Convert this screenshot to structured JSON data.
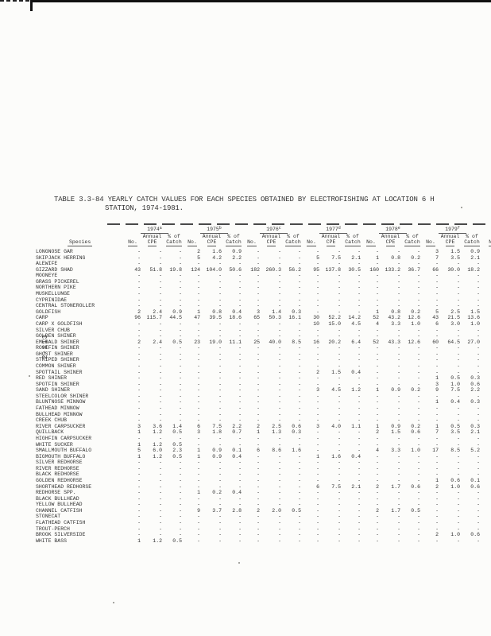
{
  "page": {
    "number_vertical": "2-113"
  },
  "title": {
    "line1": "TABLE 3.3-84  YEARLY CATCH VALUES FOR EACH SPECIES OBTAINED BY ELECTROFISHING AT LOCATION 6 H",
    "line2": "STATION, 1974-1981."
  },
  "table": {
    "species_header": "Species",
    "dash_fill": "-",
    "trailing_col": "No",
    "subcols": {
      "no": "No.",
      "annual": "Annual",
      "cpe": "CPE",
      "pct": "% of",
      "catch": "Catch"
    },
    "year_groups": [
      {
        "year": "1974",
        "sup": "a"
      },
      {
        "year": "1975",
        "sup": "b"
      },
      {
        "year": "1976",
        "sup": "c"
      },
      {
        "year": "1977",
        "sup": "d"
      },
      {
        "year": "1978",
        "sup": "e"
      },
      {
        "year": "1979",
        "sup": "f"
      }
    ],
    "rows": [
      {
        "s": "LONGNOSE GAR",
        "v": [
          "-",
          "-",
          "-",
          "2",
          "1.6",
          "0.9",
          "-",
          "-",
          "-",
          "-",
          "-",
          "-",
          "-",
          "-",
          "-",
          "3",
          "1.5",
          "0.9"
        ]
      },
      {
        "s": "SKIPJACK HERRING",
        "v": [
          "-",
          "-",
          "-",
          "5",
          "4.2",
          "2.2",
          "-",
          "-",
          "-",
          "5",
          "7.5",
          "2.1",
          "1",
          "0.8",
          "0.2",
          "7",
          "3.5",
          "2.1"
        ]
      },
      {
        "s": "ALEWIFE"
      },
      {
        "s": "GIZZARD SHAD",
        "v": [
          "43",
          "51.8",
          "19.8",
          "124",
          "104.0",
          "50.6",
          "182",
          "260.3",
          "56.2",
          "95",
          "137.8",
          "30.5",
          "160",
          "133.2",
          "36.7",
          "66",
          "30.0",
          "18.2"
        ]
      },
      {
        "s": "MOONEYE"
      },
      {
        "s": "GRASS PICKEREL"
      },
      {
        "s": "NORTHERN PIKE"
      },
      {
        "s": "MUSKELLUNGE"
      },
      {
        "s": "CYPRINIDAE"
      },
      {
        "s": "CENTRAL STONEROLLER"
      },
      {
        "s": "GOLDFISH",
        "v": [
          "2",
          "2.4",
          "0.9",
          "1",
          "0.8",
          "0.4",
          "3",
          "1.4",
          "0.3",
          "-",
          "-",
          "-",
          "1",
          "0.8",
          "0.2",
          "5",
          "2.5",
          "1.5"
        ]
      },
      {
        "s": "CARP",
        "v": [
          "96",
          "115.7",
          "44.5",
          "47",
          "39.5",
          "18.6",
          "65",
          "50.3",
          "16.1",
          "30",
          "52.2",
          "14.2",
          "52",
          "43.2",
          "12.6",
          "43",
          "21.5",
          "13.6"
        ]
      },
      {
        "s": "CARP X GOLDFISH",
        "v": [
          "-",
          "-",
          "-",
          "-",
          "-",
          "-",
          "-",
          "-",
          "-",
          "10",
          "15.0",
          "4.5",
          "4",
          "3.3",
          "1.0",
          "6",
          "3.0",
          "1.0"
        ]
      },
      {
        "s": "SILVER CHUB"
      },
      {
        "s": "GOLDEN SHINER"
      },
      {
        "s": "EMERALD SHINER",
        "v": [
          "2",
          "2.4",
          "0.5",
          "23",
          "19.0",
          "11.1",
          "25",
          "40.0",
          "8.5",
          "16",
          "20.2",
          "6.4",
          "52",
          "43.3",
          "12.6",
          "60",
          "64.5",
          "27.0"
        ]
      },
      {
        "s": "ROSEFIN SHINER"
      },
      {
        "s": "GHOST SHINER"
      },
      {
        "s": "STRIPED SHINER"
      },
      {
        "s": "COMMON SHINER"
      },
      {
        "s": "SPOTTAIL SHINER",
        "v": [
          "-",
          "-",
          "-",
          "-",
          "-",
          "-",
          "-",
          "-",
          "-",
          "2",
          "1.5",
          "0.4",
          "-",
          "-",
          "-",
          "-",
          "-",
          "-"
        ]
      },
      {
        "s": "RED SHINER",
        "v": [
          "-",
          "-",
          "-",
          "-",
          "-",
          "-",
          "-",
          "-",
          "-",
          "-",
          "-",
          "-",
          "-",
          "-",
          "-",
          "1",
          "0.5",
          "0.3"
        ]
      },
      {
        "s": "SPOTFIN SHINER",
        "v": [
          "-",
          "-",
          "-",
          "-",
          "-",
          "-",
          "-",
          "-",
          "-",
          "-",
          "-",
          "-",
          "-",
          "-",
          "-",
          "3",
          "1.0",
          "0.6"
        ]
      },
      {
        "s": "SAND SHINER",
        "v": [
          "-",
          "-",
          "-",
          "-",
          "-",
          "-",
          "-",
          "-",
          "-",
          "3",
          "4.5",
          "1.2",
          "1",
          "0.9",
          "0.2",
          "9",
          "7.5",
          "2.2"
        ]
      },
      {
        "s": "STEELCOLOR SHINER"
      },
      {
        "s": "BLUNTNOSE MINNOW",
        "v": [
          "-",
          "-",
          "-",
          "-",
          "-",
          "-",
          "-",
          "-",
          "-",
          "-",
          "-",
          "-",
          "-",
          "-",
          "-",
          "1",
          "0.4",
          "0.3"
        ]
      },
      {
        "s": "FATHEAD MINNOW"
      },
      {
        "s": "BULLHEAD MINNOW"
      },
      {
        "s": "CREEK CHUB"
      },
      {
        "s": "RIVER CARPSUCKER",
        "v": [
          "3",
          "3.6",
          "1.4",
          "6",
          "7.5",
          "2.2",
          "2",
          "2.5",
          "0.6",
          "3",
          "4.0",
          "1.1",
          "1",
          "0.9",
          "0.2",
          "1",
          "0.5",
          "0.3"
        ]
      },
      {
        "s": "QUILLBACK",
        "v": [
          "1",
          "1.2",
          "0.5",
          "3",
          "1.8",
          "0.7",
          "1",
          "1.3",
          "0.3",
          "-",
          "-",
          "-",
          "2",
          "1.5",
          "0.6",
          "7",
          "3.5",
          "2.1"
        ]
      },
      {
        "s": "HIGHFIN CARPSUCKER"
      },
      {
        "s": "WHITE SUCKER",
        "v": [
          "1",
          "1.2",
          "0.5",
          "-",
          "-",
          "-",
          "-",
          "-",
          "-",
          "-",
          "-",
          "-",
          "-",
          "-",
          "-",
          "-",
          "-",
          "-"
        ]
      },
      {
        "s": "SMALLMOUTH BUFFALO",
        "v": [
          "5",
          "6.0",
          "2.3",
          "1",
          "0.9",
          "0.1",
          "6",
          "8.6",
          "1.6",
          "-",
          "-",
          "-",
          "4",
          "3.3",
          "1.0",
          "17",
          "8.5",
          "5.2"
        ]
      },
      {
        "s": "BIGMOUTH BUFFALO",
        "v": [
          "1",
          "1.2",
          "0.5",
          "1",
          "0.9",
          "0.4",
          "-",
          "-",
          "-",
          "1",
          "1.6",
          "0.4",
          "-",
          "-",
          "-",
          "-",
          "-",
          "-"
        ]
      },
      {
        "s": "SILVER REDHORSE"
      },
      {
        "s": "RIVER REDHORSE"
      },
      {
        "s": "BLACK REDHORSE"
      },
      {
        "s": "GOLDEN REDHORSE",
        "v": [
          "-",
          "-",
          "-",
          "-",
          "-",
          "-",
          "-",
          "-",
          "-",
          "-",
          "-",
          "-",
          "-",
          "-",
          "-",
          "1",
          "0.6",
          "0.1"
        ]
      },
      {
        "s": "SHORTHEAD REDHORSE",
        "v": [
          "-",
          "-",
          "-",
          "-",
          "-",
          "-",
          "-",
          "-",
          "-",
          "6",
          "7.5",
          "2.1",
          "2",
          "1.7",
          "0.6",
          "2",
          "1.0",
          "0.6"
        ]
      },
      {
        "s": "REDHORSE SPP.",
        "v": [
          "-",
          "-",
          "-",
          "1",
          "0.2",
          "0.4",
          "-",
          "-",
          "-",
          "-",
          "-",
          "-",
          "-",
          "-",
          "-",
          "-",
          "-",
          "-"
        ]
      },
      {
        "s": "BLACK BULLHEAD"
      },
      {
        "s": "YELLOW BULLHEAD"
      },
      {
        "s": "CHANNEL CATFISH",
        "v": [
          "-",
          "-",
          "-",
          "9",
          "3.7",
          "2.8",
          "2",
          "2.0",
          "0.5",
          "-",
          "-",
          "-",
          "2",
          "1.7",
          "0.5",
          "-",
          "-",
          "-"
        ]
      },
      {
        "s": "STONECAT"
      },
      {
        "s": "FLATHEAD CATFISH"
      },
      {
        "s": "TROUT-PERCH"
      },
      {
        "s": "BROOK SILVERSIDE",
        "v": [
          "-",
          "-",
          "-",
          "-",
          "-",
          "-",
          "-",
          "-",
          "-",
          "-",
          "-",
          "-",
          "-",
          "-",
          "-",
          "2",
          "1.0",
          "0.6"
        ]
      },
      {
        "s": "WHITE BASS",
        "v": [
          "1",
          "1.2",
          "0.5",
          "-",
          "-",
          "-",
          "-",
          "-",
          "-",
          "-",
          "-",
          "-",
          "-",
          "-",
          "-",
          "-",
          "-",
          "-"
        ]
      }
    ]
  }
}
